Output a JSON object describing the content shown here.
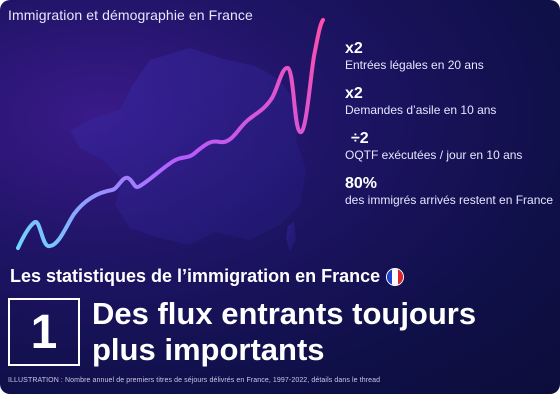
{
  "header": {
    "title": "Immigration et démographie en France"
  },
  "stats": [
    {
      "value": "x2",
      "label": "Entrées légales en 20 ans"
    },
    {
      "value": "x2",
      "label": "Demandes d’asile en 10 ans"
    },
    {
      "value": "÷2",
      "label": "OQTF exécutées / jour en 10 ans"
    },
    {
      "value": "80%",
      "label": "des immigrés arrivés restent en France"
    }
  ],
  "section": {
    "heading": "Les statistiques de l’immigration en France"
  },
  "feature": {
    "number": "1",
    "line1": "Des flux entrants toujours",
    "line2": "plus importants"
  },
  "caption": "ILLUSTRATION : Nombre annuel de premiers titres de séjours délivrés en France, 1997-2022, détails dans le thread",
  "colors": {
    "line_start": "#6fd6ff",
    "line_mid": "#b45cff",
    "line_end": "#ff4fa8",
    "flag_blue": "#1f3fd1",
    "flag_white": "#ffffff",
    "flag_red": "#e0242c"
  }
}
